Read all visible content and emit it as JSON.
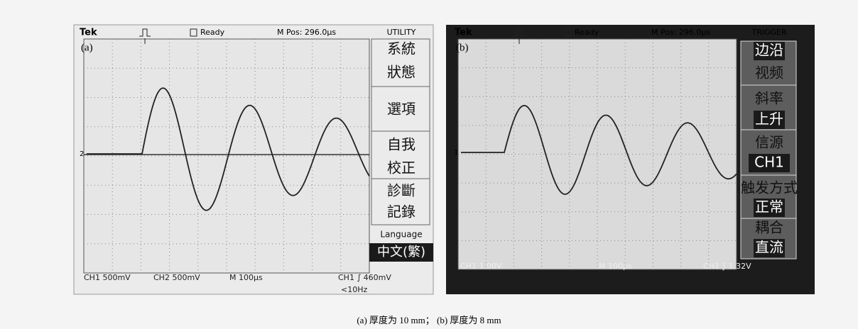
{
  "panels": [
    {
      "label": "(a)",
      "brand": "Tek",
      "status": "Ready",
      "position": "M Pos: 296.0µs",
      "menu_title": "UTILITY",
      "marker": "2",
      "menu": [
        [
          {
            "text": "系統",
            "inverted": false
          },
          {
            "text": "狀態",
            "inverted": false
          }
        ],
        [
          {
            "text": "選項",
            "inverted": false
          }
        ],
        [
          {
            "text": "自我",
            "inverted": false
          },
          {
            "text": "校正",
            "inverted": false
          }
        ],
        [
          {
            "text": "診斷",
            "inverted": false
          },
          {
            "text": "記錄",
            "inverted": false
          }
        ],
        [
          {
            "text": "Language",
            "inverted": false
          },
          {
            "text": "中文(繁)",
            "inverted": true
          }
        ]
      ],
      "footer": [
        "CH1 500mV",
        "CH2 500mV",
        "M 100µs",
        "CH1 ∫ 460mV",
        "<10Hz"
      ]
    },
    {
      "label": "(b)",
      "brand": "Tek",
      "status": "Ready",
      "position": "M Pos: 296.0µs",
      "menu_title": "TRIGGER",
      "marker": "1",
      "menu": [
        [
          {
            "text": "边沿",
            "inverted": true
          },
          {
            "text": "视频",
            "inverted": false
          }
        ],
        [
          {
            "text": "斜率",
            "inverted": false
          },
          {
            "text": "上升",
            "inverted": true
          }
        ],
        [
          {
            "text": "信源",
            "inverted": false
          },
          {
            "text": "CH1",
            "inverted": true
          }
        ],
        [
          {
            "text": "触发方式",
            "inverted": false
          },
          {
            "text": "正常",
            "inverted": true
          }
        ],
        [
          {
            "text": "耦合",
            "inverted": false
          },
          {
            "text": "直流",
            "inverted": true
          }
        ]
      ],
      "footer": [
        "CH1 1.00V",
        "M 100µs",
        "CH1 ∫ 1.32V"
      ]
    }
  ],
  "caption": "(a) 厚度为 10 mm； (b) 厚度为 8 mm"
}
